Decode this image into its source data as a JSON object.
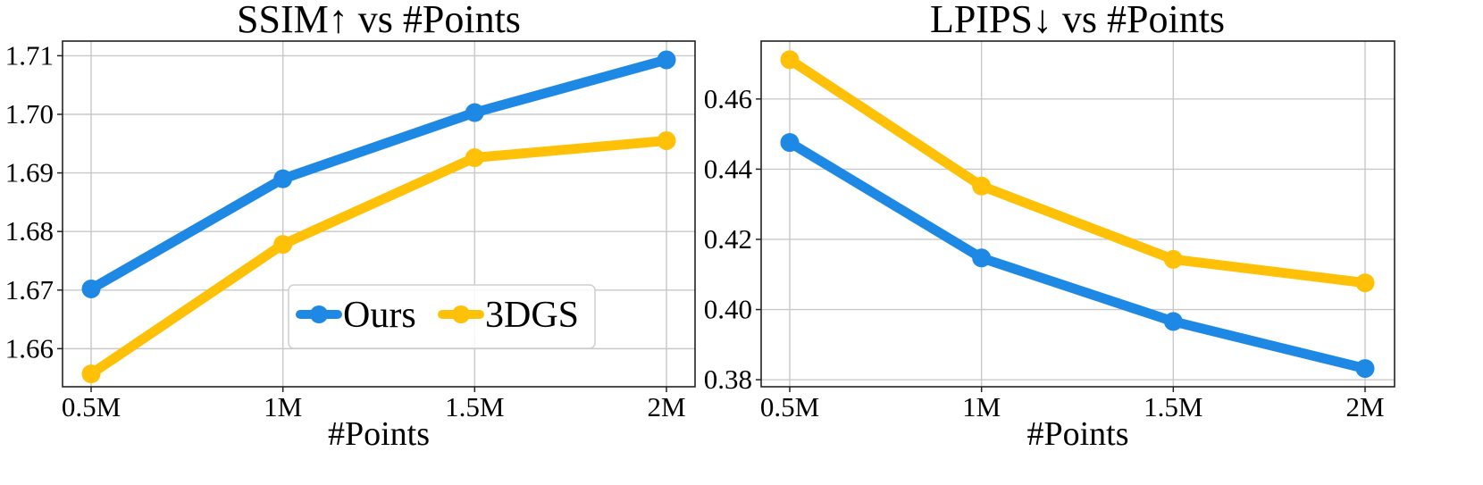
{
  "chart_data": [
    {
      "type": "line",
      "title": "SSIM↑ vs #Points",
      "xlabel": "#Points",
      "ylabel": "",
      "categories": [
        "0.5M",
        "1M",
        "1.5M",
        "2M"
      ],
      "ylim": [
        1.6535,
        1.7125
      ],
      "yticks": [
        1.66,
        1.67,
        1.68,
        1.69,
        1.7,
        1.71
      ],
      "ytick_labels": [
        "1.66",
        "1.67",
        "1.68",
        "1.69",
        "1.70",
        "1.71"
      ],
      "grid": true,
      "legend": "lower-center",
      "series": [
        {
          "name": "Ours",
          "color": "#1E88E5",
          "values": [
            1.6702,
            1.689,
            1.7003,
            1.7093
          ]
        },
        {
          "name": "3DGS",
          "color": "#FFC107",
          "values": [
            1.6557,
            1.6778,
            1.6926,
            1.6955
          ]
        }
      ]
    },
    {
      "type": "line",
      "title": "LPIPS↓ vs #Points",
      "xlabel": "#Points",
      "ylabel": "",
      "categories": [
        "0.5M",
        "1M",
        "1.5M",
        "2M"
      ],
      "ylim": [
        0.378,
        0.4765
      ],
      "yticks": [
        0.38,
        0.4,
        0.42,
        0.44,
        0.46
      ],
      "ytick_labels": [
        "0.38",
        "0.40",
        "0.42",
        "0.44",
        "0.46"
      ],
      "grid": true,
      "legend": "none",
      "series": [
        {
          "name": "Ours",
          "color": "#1E88E5",
          "values": [
            0.4476,
            0.4147,
            0.3966,
            0.3832
          ]
        },
        {
          "name": "3DGS",
          "color": "#FFC107",
          "values": [
            0.4712,
            0.4352,
            0.4143,
            0.4076
          ]
        }
      ]
    }
  ]
}
